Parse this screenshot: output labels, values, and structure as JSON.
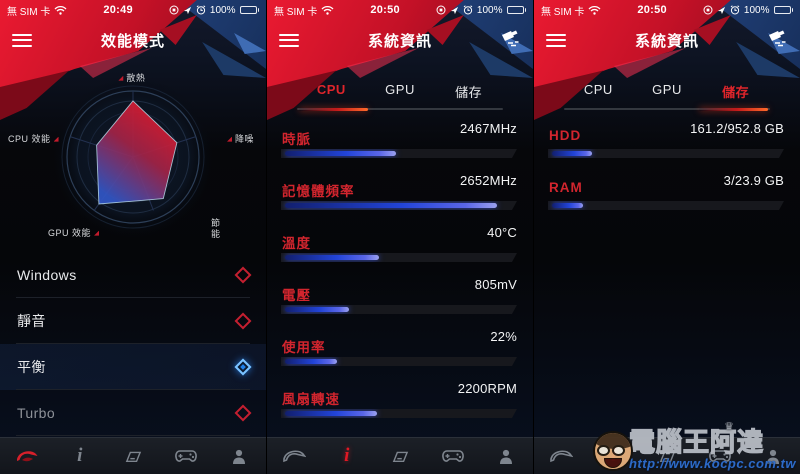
{
  "colors": {
    "accent_red": "#d6182b",
    "active_tab_red": "#e0252b",
    "selected_blue": "#1f7fe8",
    "bar_fill_start": "#121f6e",
    "bar_fill_end": "#9aa0f0",
    "header_red": "#c41127",
    "header_blue": "#2c549c"
  },
  "status_bar": {
    "carrier": "無 SIM 卡",
    "battery_percent": "100%",
    "icons": [
      "wifi-icon",
      "rotation-lock-icon",
      "location-arrow-icon",
      "alarm-icon",
      "battery-icon"
    ]
  },
  "nav": {
    "items": [
      {
        "icon": "rog-logo-icon"
      },
      {
        "icon": "info-icon",
        "glyph": "i"
      },
      {
        "icon": "banner-flag-icon"
      },
      {
        "icon": "gamepad-icon"
      },
      {
        "icon": "profile-icon"
      }
    ]
  },
  "panels": [
    {
      "time": "20:49",
      "title": "效能模式",
      "radar": {
        "axes": [
          "散熱",
          "降噪",
          "節能",
          "GPU 效能",
          "CPU 效能"
        ],
        "values": [
          0.85,
          0.7,
          0.78,
          0.88,
          0.58
        ]
      },
      "modes": [
        {
          "label": "Windows",
          "selected": false
        },
        {
          "label": "靜音",
          "selected": false
        },
        {
          "label": "平衡",
          "selected": true
        },
        {
          "label": "Turbo",
          "selected": false
        }
      ],
      "active_nav_index": 0
    },
    {
      "time": "20:50",
      "title": "系統資訊",
      "action_icon": "clean-sweep-icon",
      "tabs": [
        {
          "label": "CPU",
          "active": true
        },
        {
          "label": "GPU",
          "active": false
        },
        {
          "label": "儲存",
          "active": false
        }
      ],
      "stats": [
        {
          "label": "時脈",
          "value": "2467MHz",
          "pct": 47
        },
        {
          "label": "記憶體頻率",
          "value": "2652MHz",
          "pct": 90
        },
        {
          "label": "溫度",
          "value": "40°C",
          "pct": 40
        },
        {
          "label": "電壓",
          "value": "805mV",
          "pct": 27
        },
        {
          "label": "使用率",
          "value": "22%",
          "pct": 22
        },
        {
          "label": "風扇轉速",
          "value": "2200RPM",
          "pct": 39
        }
      ],
      "active_nav_index": 1
    },
    {
      "time": "20:50",
      "title": "系統資訊",
      "action_icon": "clean-sweep-icon",
      "tabs": [
        {
          "label": "CPU",
          "active": false
        },
        {
          "label": "GPU",
          "active": false
        },
        {
          "label": "儲存",
          "active": true
        }
      ],
      "stats": [
        {
          "label": "HDD",
          "value": "161.2/952.8 GB",
          "pct": 17
        },
        {
          "label": "RAM",
          "value": "3/23.9 GB",
          "pct": 13
        }
      ],
      "active_nav_index": 1
    }
  ],
  "chart_data": [
    {
      "type": "radar",
      "title": "效能模式 五邊形雷達圖",
      "categories": [
        "散熱",
        "降噪",
        "節能",
        "GPU 效能",
        "CPU 效能"
      ],
      "values": [
        0.85,
        0.7,
        0.78,
        0.88,
        0.58
      ],
      "value_range": [
        0,
        1
      ],
      "grid": "concentric-circles"
    },
    {
      "type": "bar",
      "title": "系統資訊 - CPU",
      "categories": [
        "時脈",
        "記憶體頻率",
        "溫度",
        "電壓",
        "使用率",
        "風扇轉速"
      ],
      "values": [
        47,
        90,
        40,
        27,
        22,
        39
      ],
      "data_labels": [
        "2467MHz",
        "2652MHz",
        "40°C",
        "805mV",
        "22%",
        "2200RPM"
      ],
      "xlabel": "",
      "ylabel": "",
      "ylim": [
        0,
        100
      ]
    },
    {
      "type": "bar",
      "title": "系統資訊 - 儲存",
      "categories": [
        "HDD",
        "RAM"
      ],
      "values": [
        17,
        13
      ],
      "data_labels": [
        "161.2/952.8 GB",
        "3/23.9 GB"
      ],
      "xlabel": "",
      "ylabel": "",
      "ylim": [
        0,
        100
      ]
    }
  ],
  "watermark": {
    "name": "電腦王阿達",
    "url": "http://www.kocpc.com.tw",
    "crown": "♛"
  }
}
